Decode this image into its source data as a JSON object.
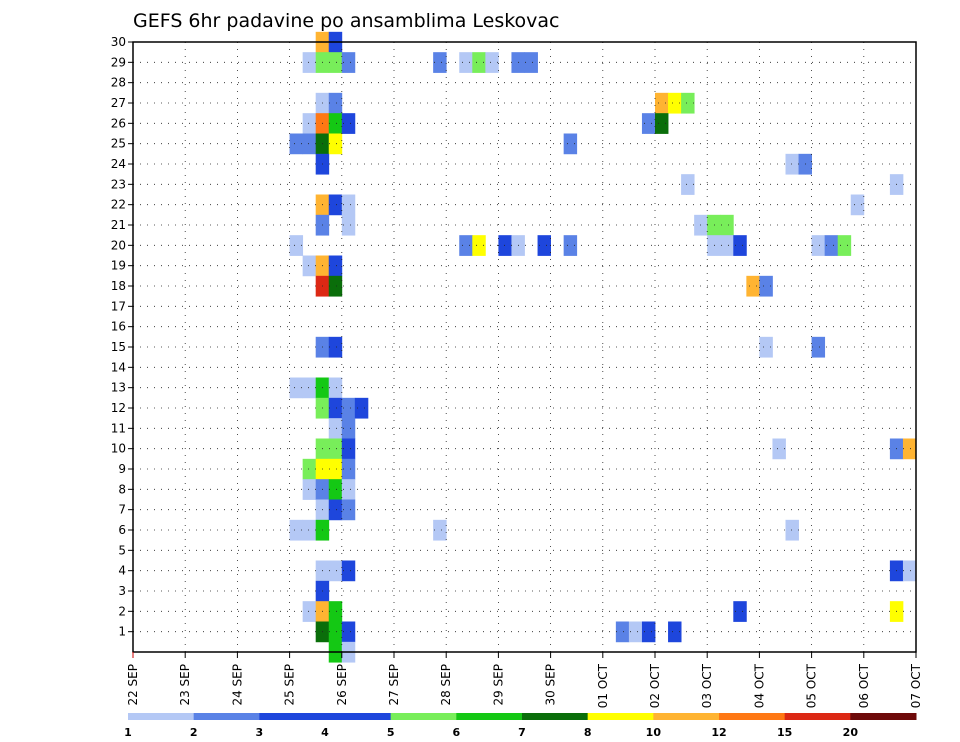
{
  "chart_data": {
    "type": "heatmap",
    "title": "GEFS 6hr padavine po ansamblima Leskovac",
    "x_tick_labels": [
      "22 SEP",
      "23 SEP",
      "24 SEP",
      "25 SEP",
      "26 SEP",
      "27 SEP",
      "28 SEP",
      "29 SEP",
      "30 SEP",
      "01 OCT",
      "02 OCT",
      "03 OCT",
      "04 OCT",
      "05 OCT",
      "06 OCT",
      "07 OCT"
    ],
    "y_tick_labels": [
      "1",
      "2",
      "3",
      "4",
      "5",
      "6",
      "7",
      "8",
      "9",
      "10",
      "11",
      "12",
      "13",
      "14",
      "15",
      "16",
      "17",
      "18",
      "19",
      "20",
      "21",
      "22",
      "23",
      "24",
      "25",
      "26",
      "27",
      "28",
      "29",
      "30"
    ],
    "x_range_days": [
      0,
      15
    ],
    "y_range_members": [
      0,
      30
    ],
    "steps_per_day": 4,
    "grid": true,
    "legend_placement": "bottom",
    "legend_levels": [
      "1",
      "2",
      "3",
      "4",
      "5",
      "6",
      "7",
      "8",
      "10",
      "12",
      "15",
      "20"
    ],
    "colors": [
      "#b4c8f5",
      "#5a82e6",
      "#1e46dc",
      "#1e46dc",
      "#78ee5a",
      "#14c814",
      "#0a6e0a",
      "#ffff00",
      "#ffb432",
      "#ff7814",
      "#dc2814",
      "#6e0a0a"
    ],
    "cells": [
      [
        3.5,
        30,
        "#ffb432"
      ],
      [
        3.75,
        30,
        "#1e46dc"
      ],
      [
        3.25,
        29,
        "#b4c8f5"
      ],
      [
        3.5,
        29,
        "#78ee5a"
      ],
      [
        3.75,
        29,
        "#78ee5a"
      ],
      [
        4.0,
        29,
        "#5a82e6"
      ],
      [
        5.75,
        29,
        "#5a82e6"
      ],
      [
        6.25,
        29,
        "#b4c8f5"
      ],
      [
        6.5,
        29,
        "#78ee5a"
      ],
      [
        6.75,
        29,
        "#b4c8f5"
      ],
      [
        7.25,
        29,
        "#5a82e6"
      ],
      [
        7.5,
        29,
        "#5a82e6"
      ],
      [
        3.5,
        27,
        "#b4c8f5"
      ],
      [
        3.75,
        27,
        "#5a82e6"
      ],
      [
        10.0,
        27,
        "#ffb432"
      ],
      [
        10.25,
        27,
        "#ffff00"
      ],
      [
        10.5,
        27,
        "#78ee5a"
      ],
      [
        3.25,
        26,
        "#b4c8f5"
      ],
      [
        3.5,
        26,
        "#ff7814"
      ],
      [
        3.75,
        26,
        "#14c814"
      ],
      [
        4.0,
        26,
        "#1e46dc"
      ],
      [
        9.75,
        26,
        "#5a82e6"
      ],
      [
        10.0,
        26,
        "#0a6e0a"
      ],
      [
        3.0,
        25,
        "#5a82e6"
      ],
      [
        3.25,
        25,
        "#5a82e6"
      ],
      [
        3.5,
        25,
        "#0a6e0a"
      ],
      [
        3.75,
        25,
        "#ffff00"
      ],
      [
        8.25,
        25,
        "#5a82e6"
      ],
      [
        3.5,
        24,
        "#1e46dc"
      ],
      [
        12.5,
        24,
        "#b4c8f5"
      ],
      [
        12.75,
        24,
        "#5a82e6"
      ],
      [
        10.5,
        23,
        "#b4c8f5"
      ],
      [
        14.5,
        23,
        "#b4c8f5"
      ],
      [
        3.5,
        22,
        "#ffb432"
      ],
      [
        3.75,
        22,
        "#1e46dc"
      ],
      [
        4.0,
        22,
        "#b4c8f5"
      ],
      [
        13.75,
        22,
        "#b4c8f5"
      ],
      [
        3.5,
        21,
        "#5a82e6"
      ],
      [
        4.0,
        21,
        "#b4c8f5"
      ],
      [
        10.75,
        21,
        "#b4c8f5"
      ],
      [
        11.0,
        21,
        "#78ee5a"
      ],
      [
        11.25,
        21,
        "#78ee5a"
      ],
      [
        3.0,
        20,
        "#b4c8f5"
      ],
      [
        6.25,
        20,
        "#5a82e6"
      ],
      [
        6.5,
        20,
        "#ffff00"
      ],
      [
        7.0,
        20,
        "#1e46dc"
      ],
      [
        7.25,
        20,
        "#b4c8f5"
      ],
      [
        7.75,
        20,
        "#1e46dc"
      ],
      [
        8.25,
        20,
        "#5a82e6"
      ],
      [
        11.0,
        20,
        "#b4c8f5"
      ],
      [
        11.25,
        20,
        "#b4c8f5"
      ],
      [
        11.5,
        20,
        "#1e46dc"
      ],
      [
        13.0,
        20,
        "#b4c8f5"
      ],
      [
        13.25,
        20,
        "#5a82e6"
      ],
      [
        13.5,
        20,
        "#78ee5a"
      ],
      [
        3.25,
        19,
        "#b4c8f5"
      ],
      [
        3.5,
        19,
        "#ffb432"
      ],
      [
        3.75,
        19,
        "#1e46dc"
      ],
      [
        3.5,
        18,
        "#dc2814"
      ],
      [
        3.75,
        18,
        "#0a6e0a"
      ],
      [
        11.75,
        18,
        "#ffb432"
      ],
      [
        12.0,
        18,
        "#5a82e6"
      ],
      [
        3.5,
        15,
        "#5a82e6"
      ],
      [
        3.75,
        15,
        "#1e46dc"
      ],
      [
        12.0,
        15,
        "#b4c8f5"
      ],
      [
        13.0,
        15,
        "#5a82e6"
      ],
      [
        3.0,
        13,
        "#b4c8f5"
      ],
      [
        3.25,
        13,
        "#b4c8f5"
      ],
      [
        3.5,
        13,
        "#14c814"
      ],
      [
        3.75,
        13,
        "#b4c8f5"
      ],
      [
        3.5,
        12,
        "#78ee5a"
      ],
      [
        3.75,
        12,
        "#1e46dc"
      ],
      [
        4.0,
        12,
        "#5a82e6"
      ],
      [
        4.25,
        12,
        "#1e46dc"
      ],
      [
        3.75,
        11,
        "#b4c8f5"
      ],
      [
        4.0,
        11,
        "#5a82e6"
      ],
      [
        3.5,
        10,
        "#78ee5a"
      ],
      [
        3.75,
        10,
        "#78ee5a"
      ],
      [
        4.0,
        10,
        "#1e46dc"
      ],
      [
        12.25,
        10,
        "#b4c8f5"
      ],
      [
        14.5,
        10,
        "#5a82e6"
      ],
      [
        14.75,
        10,
        "#ffb432"
      ],
      [
        3.25,
        9,
        "#78ee5a"
      ],
      [
        3.5,
        9,
        "#ffff00"
      ],
      [
        3.75,
        9,
        "#ffff00"
      ],
      [
        4.0,
        9,
        "#5a82e6"
      ],
      [
        3.25,
        8,
        "#b4c8f5"
      ],
      [
        3.5,
        8,
        "#5a82e6"
      ],
      [
        3.75,
        8,
        "#14c814"
      ],
      [
        4.0,
        8,
        "#b4c8f5"
      ],
      [
        3.5,
        7,
        "#b4c8f5"
      ],
      [
        3.75,
        7,
        "#1e46dc"
      ],
      [
        4.0,
        7,
        "#5a82e6"
      ],
      [
        3.0,
        6,
        "#b4c8f5"
      ],
      [
        3.25,
        6,
        "#b4c8f5"
      ],
      [
        3.5,
        6,
        "#14c814"
      ],
      [
        5.75,
        6,
        "#b4c8f5"
      ],
      [
        12.5,
        6,
        "#b4c8f5"
      ],
      [
        3.5,
        4,
        "#b4c8f5"
      ],
      [
        3.75,
        4,
        "#b4c8f5"
      ],
      [
        4.0,
        4,
        "#1e46dc"
      ],
      [
        14.5,
        4,
        "#1e46dc"
      ],
      [
        14.75,
        4,
        "#b4c8f5"
      ],
      [
        3.5,
        3,
        "#1e46dc"
      ],
      [
        3.25,
        2,
        "#b4c8f5"
      ],
      [
        3.5,
        2,
        "#ffb432"
      ],
      [
        3.75,
        2,
        "#14c814"
      ],
      [
        11.5,
        2,
        "#1e46dc"
      ],
      [
        14.5,
        2,
        "#ffff00"
      ],
      [
        3.5,
        1,
        "#0a6e0a"
      ],
      [
        3.75,
        1,
        "#14c814"
      ],
      [
        4.0,
        1,
        "#1e46dc"
      ],
      [
        9.25,
        1,
        "#5a82e6"
      ],
      [
        9.5,
        1,
        "#b4c8f5"
      ],
      [
        9.75,
        1,
        "#1e46dc"
      ],
      [
        10.25,
        1,
        "#1e46dc"
      ],
      [
        3.75,
        0,
        "#14c814"
      ],
      [
        4.0,
        0,
        "#b4c8f5"
      ]
    ]
  }
}
